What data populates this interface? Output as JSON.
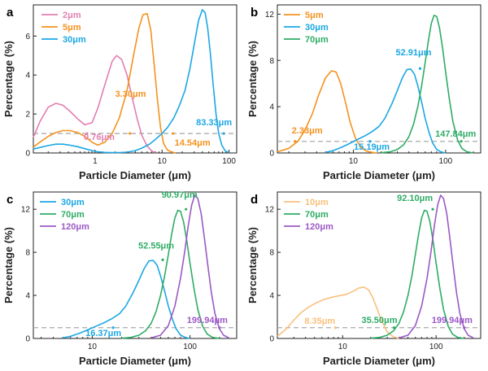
{
  "chart_data": [
    {
      "panel": "a",
      "type": "line",
      "xscale": "log",
      "xlim": [
        0.12,
        130
      ],
      "ylim": [
        0,
        7.6
      ],
      "yticks": [
        0,
        2,
        4,
        6
      ],
      "xticks": [
        1,
        10,
        100
      ],
      "xlabel": "Particle Diameter (μm)",
      "ylabel": "Percentage (%)",
      "threshold_y": 1.0,
      "series": [
        {
          "name": "2μm",
          "color": "#e27fb0",
          "x": [
            0.12,
            0.15,
            0.2,
            0.26,
            0.33,
            0.42,
            0.55,
            0.7,
            0.9,
            1.1,
            1.4,
            1.8,
            2.1,
            2.5,
            3.0,
            3.6,
            4.3,
            5.0,
            6.0,
            7.0,
            8.0
          ],
          "y": [
            0.8,
            1.6,
            2.35,
            2.55,
            2.45,
            2.15,
            1.75,
            1.45,
            1.55,
            2.3,
            3.5,
            4.7,
            5.0,
            4.8,
            4.0,
            2.8,
            1.7,
            0.9,
            0.35,
            0.1,
            0.02
          ]
        },
        {
          "name": "5μm",
          "color": "#f5921e",
          "x": [
            0.12,
            0.15,
            0.2,
            0.26,
            0.33,
            0.42,
            0.55,
            0.7,
            0.9,
            1.1,
            1.4,
            1.8,
            2.3,
            3.0,
            3.7,
            4.5,
            5.2,
            6.0,
            6.8,
            7.6,
            8.5,
            9.5,
            10.5,
            12,
            14,
            16
          ],
          "y": [
            0.3,
            0.55,
            0.85,
            1.05,
            1.15,
            1.15,
            1.05,
            0.85,
            0.55,
            0.4,
            0.55,
            1.0,
            1.8,
            3.2,
            4.9,
            6.4,
            7.1,
            7.15,
            6.3,
            4.6,
            2.8,
            1.3,
            0.5,
            0.15,
            0.05,
            0.0
          ]
        },
        {
          "name": "30μm",
          "color": "#1ba7e4",
          "x": [
            0.12,
            0.15,
            0.2,
            0.26,
            0.33,
            0.42,
            0.55,
            0.7,
            0.9,
            1.1,
            1.4,
            1.8,
            2.3,
            3.0,
            4.0,
            5.0,
            6.5,
            8.0,
            10,
            12,
            15,
            18,
            22,
            26,
            30,
            35,
            40,
            44,
            48,
            53,
            58,
            64,
            70,
            78,
            88,
            100
          ],
          "y": [
            0.2,
            0.28,
            0.38,
            0.45,
            0.45,
            0.4,
            0.32,
            0.22,
            0.12,
            0.06,
            0.03,
            0.02,
            0.02,
            0.04,
            0.12,
            0.25,
            0.45,
            0.7,
            1.0,
            1.3,
            1.8,
            2.4,
            3.2,
            4.3,
            5.5,
            6.8,
            7.35,
            7.2,
            6.4,
            5.0,
            3.5,
            2.0,
            1.0,
            0.4,
            0.1,
            0.02
          ]
        }
      ],
      "annotations": [
        {
          "text": "0.76μm",
          "x": 0.76,
          "y": 1.0,
          "color": "#e27fb0"
        },
        {
          "text": "3.30μm",
          "x": 3.3,
          "y": 1.0,
          "color": "#f5921e"
        },
        {
          "text": "14.54μm",
          "x": 14.54,
          "y": 1.0,
          "color": "#f5921e"
        },
        {
          "text": "83.33μm",
          "x": 83.33,
          "y": 1.0,
          "color": "#1ba7e4"
        }
      ]
    },
    {
      "panel": "b",
      "type": "line",
      "xscale": "log",
      "xlim": [
        1.5,
        240
      ],
      "ylim": [
        0,
        12.8
      ],
      "yticks": [
        0,
        4,
        8,
        12
      ],
      "xticks": [
        10,
        100
      ],
      "xlabel": "Particle Diameter (μm)",
      "ylabel": "Percentage (%)",
      "threshold_y": 1.0,
      "series": [
        {
          "name": "5μm",
          "color": "#f5921e",
          "x": [
            1.5,
            2.0,
            2.5,
            3.0,
            3.6,
            4.2,
            5.0,
            5.8,
            6.5,
            7.3,
            8.2,
            9.2,
            10.5,
            12,
            14,
            16,
            18
          ],
          "y": [
            0.1,
            0.4,
            1.0,
            2.0,
            3.4,
            5.0,
            6.5,
            7.1,
            7.0,
            6.0,
            4.4,
            2.7,
            1.3,
            0.5,
            0.15,
            0.05,
            0.0
          ]
        },
        {
          "name": "30μm",
          "color": "#1ba7e4",
          "x": [
            5,
            6,
            7.5,
            9,
            11,
            13.5,
            16,
            19,
            22,
            26,
            30,
            34,
            38,
            42,
            46,
            50,
            55,
            60,
            66,
            72,
            80,
            90,
            100
          ],
          "y": [
            0.05,
            0.2,
            0.5,
            0.8,
            1.15,
            1.5,
            1.85,
            2.3,
            3.0,
            4.2,
            5.4,
            6.5,
            7.2,
            7.25,
            6.8,
            5.8,
            4.4,
            3.0,
            1.8,
            0.9,
            0.3,
            0.08,
            0.0
          ]
        },
        {
          "name": "70μm",
          "color": "#2eac65",
          "x": [
            20,
            25,
            30,
            35,
            40,
            45,
            50,
            55,
            60,
            65,
            70,
            75,
            80,
            86,
            93,
            100,
            110,
            120,
            135,
            150,
            170,
            200
          ],
          "y": [
            0.02,
            0.1,
            0.3,
            0.7,
            1.4,
            2.5,
            4.0,
            5.8,
            7.8,
            9.7,
            11.2,
            11.9,
            11.8,
            10.8,
            9.0,
            7.0,
            4.6,
            2.7,
            1.1,
            0.4,
            0.1,
            0.0
          ]
        }
      ],
      "annotations": [
        {
          "text": "2.33μm",
          "x": 2.33,
          "y": 1.0,
          "color": "#f5921e"
        },
        {
          "text": "15.19μm",
          "x": 15.19,
          "y": 1.0,
          "color": "#1ba7e4"
        },
        {
          "text": "52.91μm",
          "x": 52.91,
          "y": 7.3,
          "color": "#1ba7e4"
        },
        {
          "text": "147.84μm",
          "x": 147.84,
          "y": 1.0,
          "color": "#2eac65"
        }
      ]
    },
    {
      "panel": "c",
      "type": "line",
      "xscale": "log",
      "xlim": [
        2.5,
        300
      ],
      "ylim": [
        0,
        13.6
      ],
      "yticks": [
        0,
        4,
        8,
        12
      ],
      "xticks": [
        10,
        100
      ],
      "xlabel": "Particle Diameter (μm)",
      "ylabel": "Percentage (%)",
      "threshold_y": 1.0,
      "series": [
        {
          "name": "30μm",
          "color": "#1ba7e4",
          "x": [
            5,
            6,
            7.5,
            9,
            11,
            13.5,
            16,
            19,
            22,
            26,
            30,
            34,
            38,
            42,
            46,
            50,
            55,
            60,
            66,
            72,
            80,
            90,
            100
          ],
          "y": [
            0.05,
            0.2,
            0.5,
            0.8,
            1.15,
            1.5,
            1.85,
            2.3,
            3.0,
            4.2,
            5.4,
            6.5,
            7.2,
            7.25,
            6.8,
            5.8,
            4.4,
            3.0,
            1.8,
            0.9,
            0.3,
            0.08,
            0.0
          ]
        },
        {
          "name": "70μm",
          "color": "#2eac65",
          "x": [
            20,
            25,
            30,
            35,
            40,
            45,
            50,
            55,
            60,
            65,
            70,
            75,
            80,
            86,
            93,
            100,
            110,
            120,
            135,
            150,
            170,
            200
          ],
          "y": [
            0.02,
            0.1,
            0.3,
            0.7,
            1.4,
            2.5,
            4.0,
            5.8,
            7.8,
            9.7,
            11.2,
            11.9,
            11.8,
            10.8,
            9.0,
            7.0,
            4.6,
            2.7,
            1.1,
            0.4,
            0.1,
            0.0
          ]
        },
        {
          "name": "120μm",
          "color": "#9b59c6",
          "x": [
            40,
            50,
            60,
            70,
            80,
            88,
            96,
            104,
            112,
            120,
            130,
            140,
            152,
            165,
            180,
            200,
            220,
            250
          ],
          "y": [
            0.05,
            0.3,
            1.2,
            3.0,
            5.6,
            8.0,
            10.5,
            12.4,
            13.3,
            13.0,
            11.6,
            9.4,
            6.8,
            4.3,
            2.3,
            0.9,
            0.3,
            0.05
          ]
        }
      ],
      "annotations": [
        {
          "text": "16.37μm",
          "x": 16.37,
          "y": 1.0,
          "color": "#1ba7e4"
        },
        {
          "text": "52.55μm",
          "x": 52.55,
          "y": 7.3,
          "color": "#2eac65"
        },
        {
          "text": "90.97μm",
          "x": 90.97,
          "y": 12.0,
          "color": "#2eac65"
        },
        {
          "text": "199.94μm",
          "x": 199.94,
          "y": 1.0,
          "color": "#9b59c6"
        }
      ]
    },
    {
      "panel": "d",
      "type": "line",
      "xscale": "log",
      "xlim": [
        2.0,
        300
      ],
      "ylim": [
        0,
        13.6
      ],
      "yticks": [
        0,
        4,
        8,
        12
      ],
      "xticks": [
        10,
        100
      ],
      "xlabel": "Particle Diameter (μm)",
      "ylabel": "Percentage (%)",
      "threshold_y": 1.0,
      "series": [
        {
          "name": "10μm",
          "color": "#f9c07d",
          "x": [
            2.0,
            2.5,
            3.0,
            3.6,
            4.3,
            5.2,
            6.2,
            7.5,
            9.0,
            11,
            13,
            15,
            17,
            19,
            21,
            23,
            26,
            30,
            35,
            40
          ],
          "y": [
            0.2,
            0.9,
            1.7,
            2.4,
            2.9,
            3.3,
            3.6,
            3.8,
            3.95,
            4.1,
            4.4,
            4.7,
            4.75,
            4.5,
            3.8,
            2.9,
            1.7,
            0.6,
            0.15,
            0.0
          ]
        },
        {
          "name": "70μm",
          "color": "#2eac65",
          "x": [
            20,
            25,
            30,
            35,
            40,
            45,
            50,
            55,
            60,
            65,
            70,
            75,
            80,
            86,
            93,
            100,
            110,
            120,
            135,
            150,
            170,
            200
          ],
          "y": [
            0.02,
            0.1,
            0.3,
            0.7,
            1.4,
            2.5,
            4.0,
            5.8,
            7.8,
            9.7,
            11.2,
            11.9,
            11.8,
            10.8,
            9.0,
            7.0,
            4.6,
            2.7,
            1.1,
            0.4,
            0.1,
            0.0
          ]
        },
        {
          "name": "120μm",
          "color": "#9b59c6",
          "x": [
            40,
            50,
            60,
            70,
            80,
            88,
            96,
            104,
            112,
            120,
            130,
            140,
            152,
            165,
            180,
            200,
            220,
            250
          ],
          "y": [
            0.05,
            0.3,
            1.2,
            3.0,
            5.6,
            8.0,
            10.5,
            12.4,
            13.3,
            13.0,
            11.6,
            9.4,
            6.8,
            4.3,
            2.3,
            0.9,
            0.3,
            0.05
          ]
        }
      ],
      "annotations": [
        {
          "text": "8.35μm",
          "x": 8.35,
          "y": 1.0,
          "color": "#f9c07d"
        },
        {
          "text": "35.50μm",
          "x": 35.5,
          "y": 1.0,
          "color": "#2eac65"
        },
        {
          "text": "92.10μm",
          "x": 92.1,
          "y": 12.0,
          "color": "#2eac65"
        },
        {
          "text": "199.94μm",
          "x": 199.94,
          "y": 1.0,
          "color": "#9b59c6"
        }
      ]
    }
  ]
}
